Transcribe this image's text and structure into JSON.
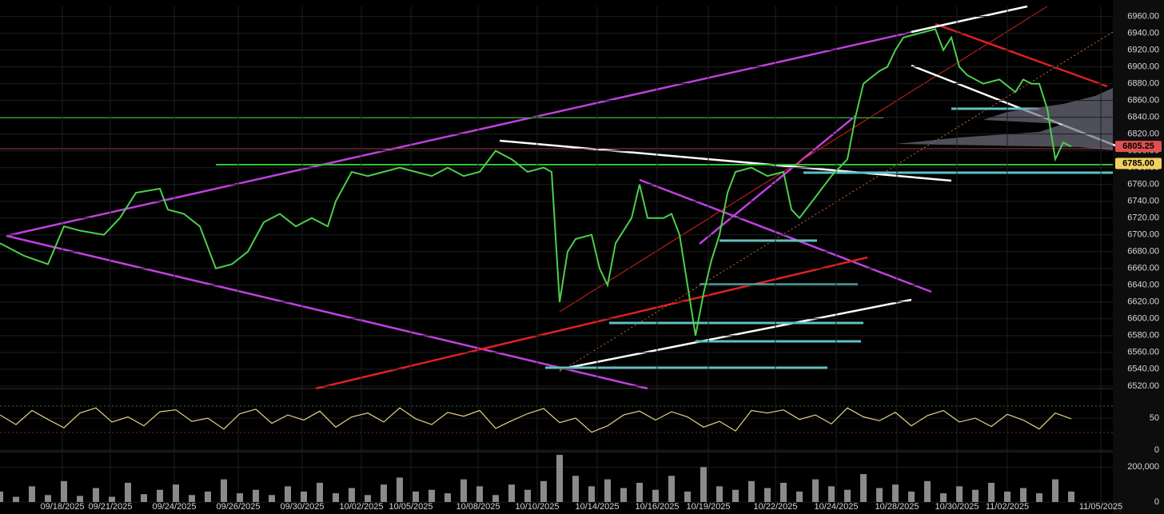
{
  "chart_data": [
    {
      "type": "line",
      "x": [
        0,
        3,
        6,
        8,
        10,
        13,
        15,
        17,
        20,
        21,
        23,
        25,
        27,
        29,
        31,
        33,
        35,
        37,
        39,
        41,
        42,
        44,
        46,
        48,
        50,
        52,
        54,
        56,
        58,
        60,
        62,
        64,
        66,
        68,
        69,
        70,
        71,
        72,
        74,
        75,
        76,
        77,
        79,
        80,
        81,
        83,
        84,
        85,
        86,
        87,
        88,
        89,
        90,
        91,
        92,
        94,
        96,
        98,
        99,
        100,
        102,
        104,
        106,
        107,
        108,
        110,
        111,
        112,
        113,
        115,
        117,
        118,
        119,
        120,
        121,
        123,
        125,
        127,
        128,
        129,
        130,
        131,
        132,
        133,
        134
      ],
      "series": [
        {
          "color": "#4ccf4c",
          "values": [
            6690,
            6675,
            6665,
            6710,
            6705,
            6700,
            6720,
            6750,
            6755,
            6730,
            6725,
            6710,
            6660,
            6665,
            6680,
            6715,
            6725,
            6710,
            6720,
            6710,
            6740,
            6775,
            6770,
            6775,
            6780,
            6775,
            6770,
            6780,
            6770,
            6775,
            6800,
            6790,
            6775,
            6780,
            6775,
            6620,
            6680,
            6695,
            6700,
            6660,
            6640,
            6690,
            6720,
            6760,
            6720,
            6720,
            6725,
            6700,
            6640,
            6580,
            6630,
            6670,
            6700,
            6750,
            6775,
            6780,
            6770,
            6775,
            6730,
            6720,
            6745,
            6770,
            6790,
            6840,
            6880,
            6895,
            6900,
            6920,
            6935,
            6940,
            6945,
            6920,
            6935,
            6900,
            6890,
            6880,
            6885,
            6870,
            6885,
            6880,
            6880,
            6850,
            6790,
            6810,
            6805
          ]
        }
      ],
      "xlim": [
        0,
        139.2
      ],
      "ylim": [
        6517,
        6972
      ],
      "yticks": [
        {
          "value": 6520,
          "label": "6520.00"
        },
        {
          "value": 6540,
          "label": "6540.00"
        },
        {
          "value": 6560,
          "label": "6560.00"
        },
        {
          "value": 6580,
          "label": "6580.00"
        },
        {
          "value": 6600,
          "label": "6600.00"
        },
        {
          "value": 6620,
          "label": "6620.00"
        },
        {
          "value": 6640,
          "label": "6640.00"
        },
        {
          "value": 6660,
          "label": "6660.00"
        },
        {
          "value": 6680,
          "label": "6680.00"
        },
        {
          "value": 6700,
          "label": "6700.00"
        },
        {
          "value": 6720,
          "label": "6720.00"
        },
        {
          "value": 6740,
          "label": "6740.00"
        },
        {
          "value": 6760,
          "label": "6760.00"
        },
        {
          "value": 6780,
          "label": "6780.00"
        },
        {
          "value": 6800,
          "label": "6800.00"
        },
        {
          "value": 6820,
          "label": "6820.00"
        },
        {
          "value": 6840,
          "label": "6840.00"
        },
        {
          "value": 6860,
          "label": "6860.00"
        },
        {
          "value": 6880,
          "label": "6880.00"
        },
        {
          "value": 6900,
          "label": "6900.00"
        },
        {
          "value": 6920,
          "label": "6920.00"
        },
        {
          "value": 6940,
          "label": "6940.00"
        },
        {
          "value": 6960,
          "label": "6960.00"
        }
      ],
      "xticks": [
        {
          "value": 7.8,
          "label": "09/18/2025"
        },
        {
          "value": 13.8,
          "label": "09/21/2025"
        },
        {
          "value": 21.8,
          "label": "09/24/2025"
        },
        {
          "value": 29.8,
          "label": "09/26/2025"
        },
        {
          "value": 37.8,
          "label": "09/30/2025"
        },
        {
          "value": 45.2,
          "label": "10/02/2025"
        },
        {
          "value": 51.4,
          "label": "10/05/2025"
        },
        {
          "value": 59.8,
          "label": "10/08/2025"
        },
        {
          "value": 67.2,
          "label": "10/10/2025"
        },
        {
          "value": 74.7,
          "label": "10/14/2025"
        },
        {
          "value": 82.2,
          "label": "10/16/2025"
        },
        {
          "value": 88.6,
          "label": "10/19/2025"
        },
        {
          "value": 97.0,
          "label": "10/22/2025"
        },
        {
          "value": 104.6,
          "label": "10/24/2025"
        },
        {
          "value": 112.2,
          "label": "10/28/2025"
        },
        {
          "value": 119.7,
          "label": "10/30/2025"
        },
        {
          "value": 126.0,
          "label": "11/02/2025"
        },
        {
          "value": 137.7,
          "label": "11/05/2025"
        }
      ],
      "price_labels": [
        {
          "value": 6805.25,
          "label": "6805.25",
          "color": "#e05050"
        },
        {
          "value": 6785,
          "label": "6785.00",
          "color": "#f0d060"
        }
      ]
    },
    {
      "type": "line",
      "x": [
        0,
        2,
        4,
        6,
        8,
        10,
        12,
        14,
        16,
        18,
        20,
        22,
        24,
        26,
        28,
        30,
        32,
        34,
        36,
        38,
        40,
        42,
        44,
        46,
        48,
        50,
        52,
        54,
        56,
        58,
        60,
        62,
        64,
        66,
        68,
        70,
        72,
        74,
        76,
        78,
        80,
        82,
        84,
        86,
        88,
        90,
        92,
        94,
        96,
        98,
        100,
        102,
        104,
        106,
        108,
        110,
        112,
        114,
        116,
        118,
        120,
        122,
        124,
        126,
        128,
        130,
        132,
        134
      ],
      "series": [
        {
          "color": "#e8d08a",
          "values": [
            55,
            40,
            62,
            48,
            35,
            58,
            66,
            44,
            52,
            38,
            60,
            63,
            45,
            50,
            33,
            57,
            64,
            42,
            55,
            47,
            61,
            36,
            52,
            58,
            44,
            66,
            49,
            40,
            59,
            53,
            62,
            34,
            46,
            57,
            65,
            43,
            50,
            28,
            38,
            55,
            61,
            47,
            60,
            52,
            36,
            45,
            30,
            62,
            58,
            63,
            48,
            55,
            41,
            66,
            52,
            46,
            59,
            38,
            54,
            62,
            44,
            50,
            37,
            56,
            47,
            33,
            58,
            49
          ]
        }
      ],
      "xlim": [
        0,
        139.2
      ],
      "ylim": [
        0,
        94
      ],
      "yticks": [
        0,
        50
      ]
    },
    {
      "type": "bar",
      "x": [
        0,
        2,
        4,
        6,
        8,
        10,
        12,
        14,
        16,
        18,
        20,
        22,
        24,
        26,
        28,
        30,
        32,
        34,
        36,
        38,
        40,
        42,
        44,
        46,
        48,
        50,
        52,
        54,
        56,
        58,
        60,
        62,
        64,
        66,
        68,
        70,
        72,
        74,
        76,
        78,
        80,
        82,
        84,
        86,
        88,
        90,
        92,
        94,
        96,
        98,
        100,
        102,
        104,
        106,
        108,
        110,
        112,
        114,
        116,
        118,
        120,
        122,
        124,
        126,
        128,
        130,
        132,
        134
      ],
      "values": [
        60000,
        30000,
        90000,
        40000,
        120000,
        35000,
        80000,
        30000,
        110000,
        45000,
        70000,
        100000,
        40000,
        60000,
        130000,
        50000,
        70000,
        40000,
        90000,
        60000,
        110000,
        50000,
        80000,
        40000,
        100000,
        140000,
        60000,
        70000,
        50000,
        130000,
        90000,
        40000,
        100000,
        70000,
        120000,
        270000,
        150000,
        90000,
        130000,
        80000,
        110000,
        70000,
        150000,
        60000,
        200000,
        90000,
        70000,
        120000,
        80000,
        110000,
        60000,
        130000,
        90000,
        70000,
        160000,
        80000,
        100000,
        60000,
        120000,
        50000,
        90000,
        70000,
        110000,
        60000,
        80000,
        50000,
        130000,
        60000
      ],
      "color": "#8a8a8a",
      "xlim": [
        0,
        139.2
      ],
      "ylim": [
        0,
        284000
      ],
      "yticks": [
        0,
        {
          "value": 200000,
          "label": "200,000"
        }
      ]
    }
  ]
}
